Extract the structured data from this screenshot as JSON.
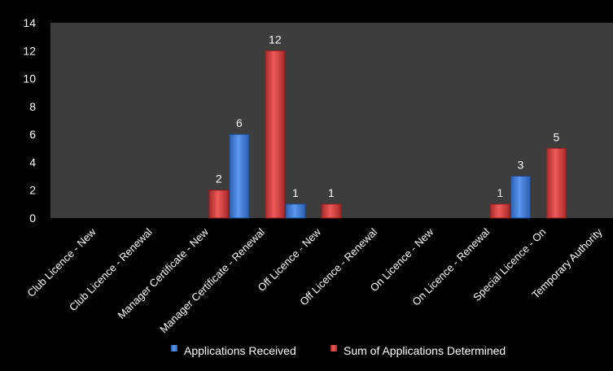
{
  "chart_data": {
    "type": "bar",
    "categories": [
      "Club Licence - New",
      "Club Licence - Renewal",
      "Manager Certificate - New",
      "Manager Certificate - Renewal",
      "Off Licence - New",
      "Off Licence - Renewal",
      "On Licence - New",
      "On Licence - Renewal",
      "Special Licence - On",
      "Temporary Authority"
    ],
    "series": [
      {
        "name": "Applications Received",
        "color": "#3a78d6",
        "values": [
          null,
          null,
          null,
          6,
          1,
          null,
          null,
          null,
          3,
          null
        ]
      },
      {
        "name": "Sum of Applications Determined",
        "color": "#d23a3a",
        "values": [
          null,
          null,
          2,
          12,
          1,
          null,
          null,
          1,
          5,
          null
        ]
      }
    ],
    "ylim": [
      0,
      14
    ],
    "yticks": [
      0,
      2,
      4,
      6,
      8,
      10,
      12,
      14
    ],
    "title": "",
    "xlabel": "",
    "ylabel": "",
    "grid": false,
    "legend_position": "bottom-right",
    "plot_background": "#3d3d3d",
    "figure_background": "#000000"
  }
}
